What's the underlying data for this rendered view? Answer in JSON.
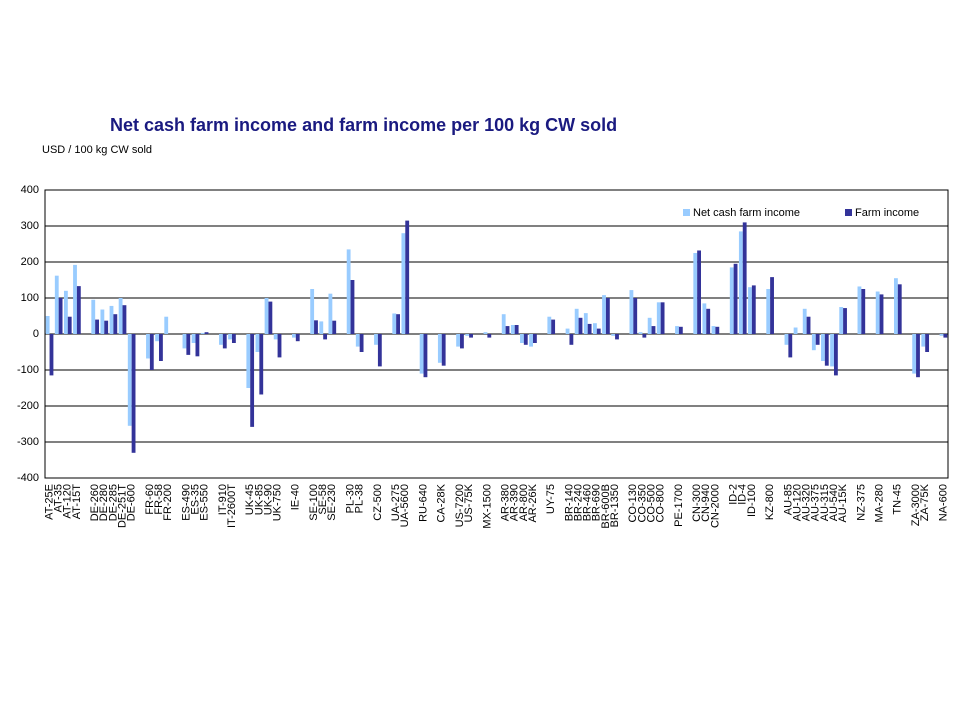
{
  "chart_data": {
    "type": "bar",
    "title": "Net cash farm income and farm income per 100 kg CW sold",
    "y_label": "USD / 100 kg CW sold",
    "categories": [
      "AT-25E",
      "AT-35",
      "AT-120",
      "AT-15T",
      null,
      "DE-260",
      "DE-280",
      "DE-285",
      "DE-251T",
      "DE-600",
      null,
      "FR-60",
      "FR-58",
      "FR-200",
      null,
      "ES-490",
      "ES-35",
      "ES-550",
      null,
      "IT-910",
      "IT-2600T",
      null,
      "UK-45",
      "UK-85",
      "UK-90",
      "UK-750",
      null,
      "IE-40",
      null,
      "SE-100",
      "SE-58",
      "SE-230",
      null,
      "PL-30",
      "PL-38",
      null,
      "CZ-500",
      null,
      "UA-275",
      "UA-5600",
      null,
      "RU-640",
      null,
      "CA-28K",
      null,
      "US-7200",
      "US-75K",
      null,
      "MX-1500",
      null,
      "AR-380",
      "AR-390",
      "AR-800",
      "AR-26K",
      null,
      "UY-75",
      null,
      "BR-140",
      "BR-240",
      "BR-460",
      "BR-690",
      "BR-600B",
      "BR-1350",
      null,
      "CO-130",
      "CO-350",
      "CO-500",
      "CO-800",
      null,
      "PE-1700",
      null,
      "CN-300",
      "CN-940",
      "CN-2000",
      null,
      "ID-2",
      "ID-4",
      "ID-100",
      null,
      "KZ-800",
      null,
      "AU-85",
      "AU-120",
      "AU-320",
      "AU-375",
      "AU-315",
      "AU-540",
      "AU-15K",
      null,
      "NZ-375",
      null,
      "MA-280",
      null,
      "TN-45",
      null,
      "ZA-3000",
      "ZA-75K",
      null,
      "NA-600"
    ],
    "series": [
      {
        "name": "Net cash farm income",
        "color": "#99ccff",
        "values": [
          50,
          162,
          120,
          192,
          null,
          95,
          68,
          78,
          100,
          -255,
          null,
          -68,
          -20,
          48,
          null,
          -40,
          -25,
          3,
          null,
          -30,
          -15,
          null,
          -150,
          -50,
          100,
          -15,
          null,
          -10,
          null,
          125,
          35,
          112,
          null,
          235,
          -35,
          null,
          -30,
          null,
          57,
          280,
          null,
          -110,
          null,
          -80,
          null,
          -35,
          -5,
          null,
          5,
          null,
          55,
          25,
          -25,
          -35,
          null,
          48,
          null,
          15,
          70,
          58,
          30,
          108,
          -5,
          null,
          122,
          5,
          45,
          88,
          null,
          22,
          null,
          225,
          85,
          22,
          null,
          185,
          285,
          130,
          null,
          125,
          null,
          -30,
          18,
          70,
          -45,
          -75,
          -90,
          75,
          null,
          132,
          null,
          118,
          null,
          155,
          null,
          -110,
          -35,
          null,
          -5
        ]
      },
      {
        "name": "Farm income",
        "color": "#333399",
        "values": [
          -115,
          100,
          48,
          133,
          null,
          40,
          37,
          55,
          80,
          -330,
          null,
          -100,
          -75,
          0,
          null,
          -58,
          -62,
          5,
          null,
          -40,
          -25,
          null,
          -258,
          -168,
          90,
          -65,
          null,
          -20,
          null,
          38,
          -15,
          37,
          null,
          150,
          -50,
          null,
          -90,
          null,
          55,
          315,
          null,
          -120,
          null,
          -88,
          null,
          -40,
          -10,
          null,
          -10,
          null,
          22,
          25,
          -30,
          -25,
          null,
          40,
          null,
          -30,
          45,
          28,
          15,
          100,
          -15,
          null,
          100,
          -10,
          22,
          88,
          null,
          20,
          null,
          232,
          70,
          20,
          null,
          195,
          310,
          135,
          null,
          158,
          null,
          -65,
          0,
          48,
          -30,
          -88,
          -115,
          72,
          null,
          125,
          null,
          110,
          null,
          138,
          null,
          -120,
          -50,
          null,
          -10
        ]
      }
    ],
    "ylim": [
      -400,
      400
    ],
    "yticks": [
      -400,
      -300,
      -200,
      -100,
      0,
      100,
      200,
      300,
      400
    ],
    "grid": true,
    "legend": "top-right"
  }
}
